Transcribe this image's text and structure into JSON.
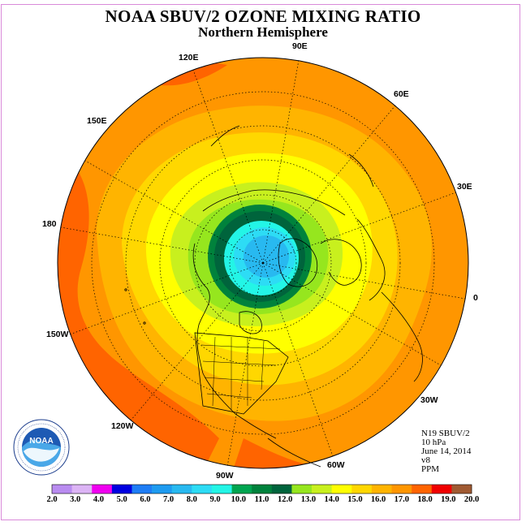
{
  "header": {
    "title": "NOAA SBUV/2 OZONE MIXING RATIO",
    "subtitle": "Northern Hemisphere"
  },
  "map": {
    "longitude_labels": [
      {
        "text": "90E",
        "name": "lon-90e-label"
      },
      {
        "text": "120E",
        "name": "lon-120e-label"
      },
      {
        "text": "60E",
        "name": "lon-60e-label"
      },
      {
        "text": "150E",
        "name": "lon-150e-label"
      },
      {
        "text": "30E",
        "name": "lon-30e-label"
      },
      {
        "text": "180",
        "name": "lon-180-label"
      },
      {
        "text": "0",
        "name": "lon-0-label"
      },
      {
        "text": "150W",
        "name": "lon-150w-label"
      },
      {
        "text": "30W",
        "name": "lon-30w-label"
      },
      {
        "text": "120W",
        "name": "lon-120w-label"
      },
      {
        "text": "60W",
        "name": "lon-60w-label"
      },
      {
        "text": "90W",
        "name": "lon-90w-label"
      }
    ]
  },
  "info": {
    "satellite": "N19 SBUV/2",
    "level": "10 hPa",
    "date": "June 14, 2014",
    "version": "v8",
    "units": "PPM"
  },
  "colorbar": {
    "labels": [
      "2.0",
      "3.0",
      "4.0",
      "5.0",
      "6.0",
      "7.0",
      "8.0",
      "9.0",
      "10.0",
      "11.0",
      "12.0",
      "13.0",
      "14.0",
      "15.0",
      "16.0",
      "17.0",
      "18.0",
      "19.0",
      "20.0"
    ],
    "colors": [
      "#bf8ff5",
      "#dfb7f7",
      "#f000f0",
      "#0000e6",
      "#1e78f0",
      "#1e96f0",
      "#23b4f0",
      "#23c8f5",
      "#23f5e6",
      "#00a050",
      "#00823c",
      "#00643c",
      "#9be61e",
      "#c8f01e",
      "#f0f51e",
      "#ffff00",
      "#ffdc00",
      "#ffbe00",
      "#ff9b00",
      "#ff6e00",
      "#f00000",
      "#aa5528"
    ],
    "swatch_colors": [
      "#b98cf0",
      "#dcb4f5",
      "#f000f0",
      "#0000e0",
      "#1e7df5",
      "#1e9bf0",
      "#28b9f0",
      "#2ddcf5",
      "#23f5e6",
      "#00a550",
      "#00823c",
      "#00643c",
      "#96e61e",
      "#c8f01e",
      "#ffff00",
      "#ffd700",
      "#ffb400",
      "#ff9600",
      "#ff6400",
      "#f00000",
      "#a05a32"
    ]
  },
  "logo": {
    "text": "NOAA",
    "ring_text": "NATIONAL OCEANIC AND ATMOSPHERIC ADMINISTRATION · U.S. DEPARTMENT OF COMMERCE"
  }
}
